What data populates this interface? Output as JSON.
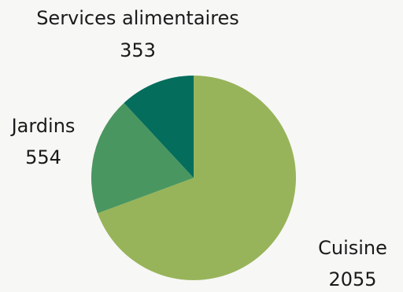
{
  "chart_data": {
    "type": "pie",
    "categories": [
      "Cuisine",
      "Jardins",
      "Services alimentaires"
    ],
    "values": [
      2055,
      554,
      353
    ],
    "value_labels": [
      "2055",
      "554",
      "353"
    ],
    "colors": [
      "#97b45a",
      "#4a9660",
      "#046d5c"
    ],
    "title": "",
    "legend": "none",
    "start_angle": "12 o'clock",
    "direction": "clockwise"
  }
}
